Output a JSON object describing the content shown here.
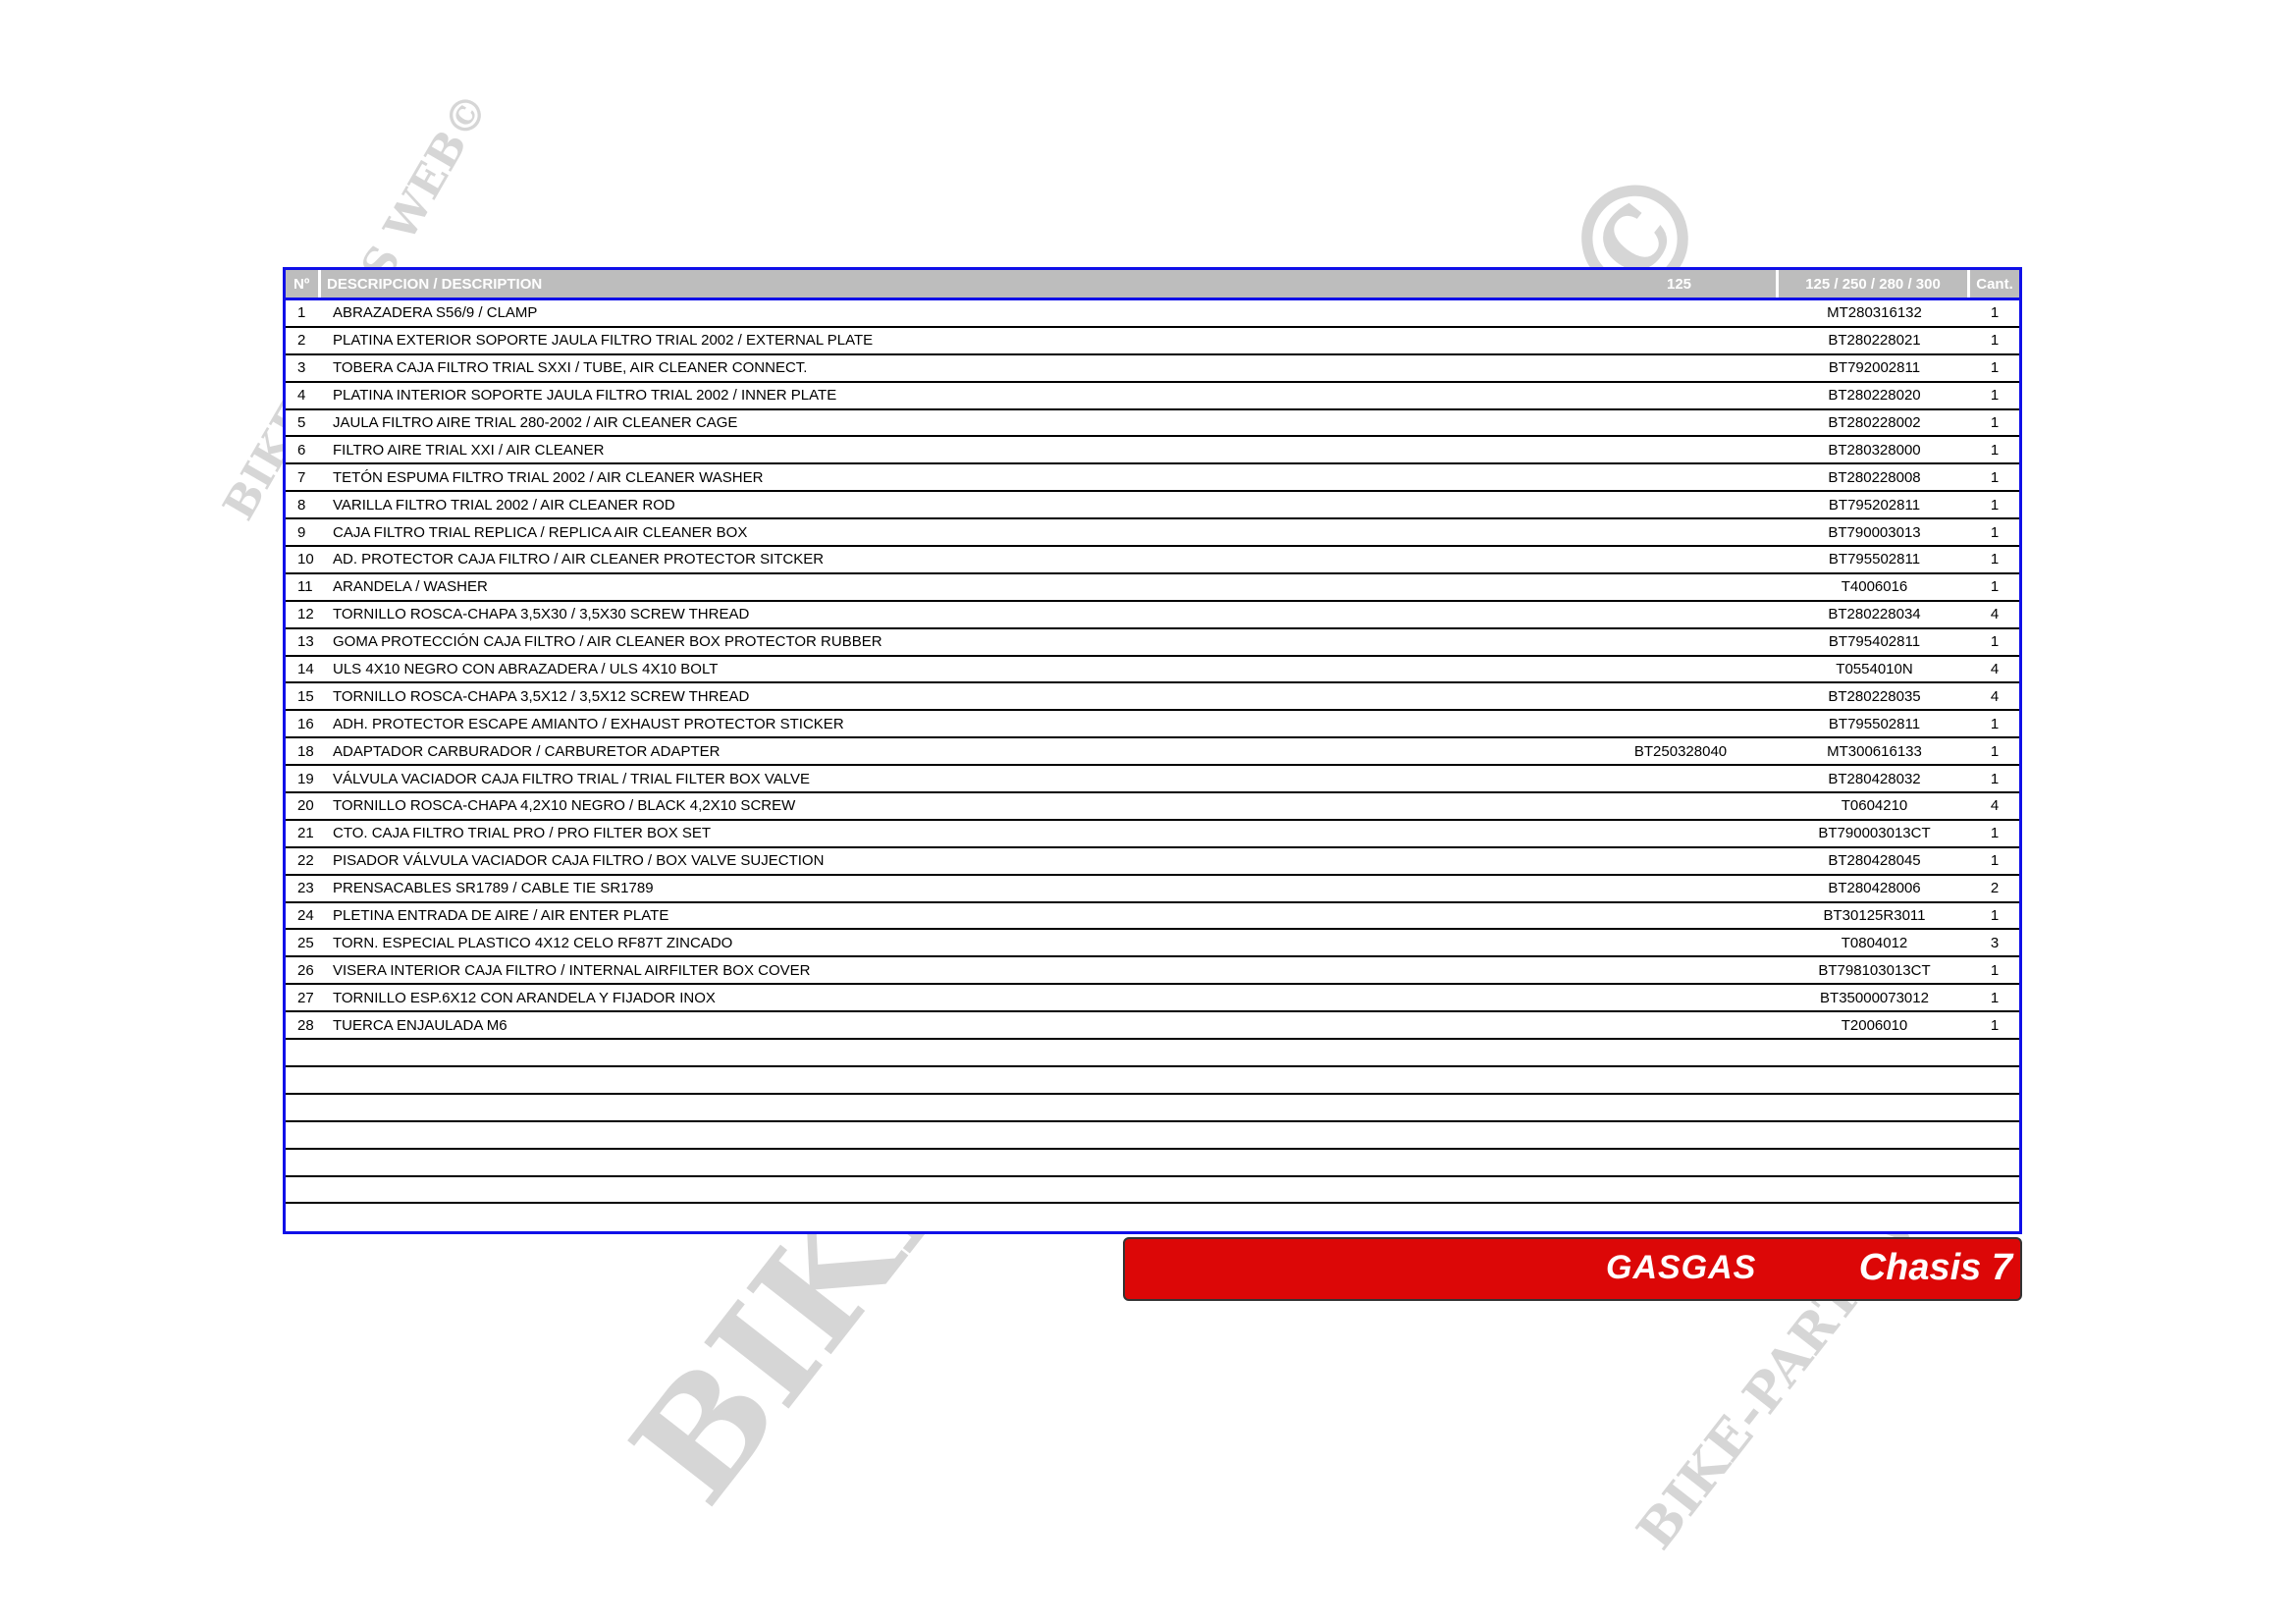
{
  "table": {
    "headers": {
      "no": "Nº",
      "description": "DESCRIPCION / DESCRIPTION",
      "col_125": "125",
      "col_all": "125 / 250 / 280 / 300",
      "qty": "Cant."
    },
    "rows": [
      {
        "no": "1",
        "desc": "ABRAZADERA S56/9 / CLAMP",
        "c125": "",
        "call": "MT280316132",
        "qty": "1"
      },
      {
        "no": "2",
        "desc": "PLATINA EXTERIOR SOPORTE JAULA FILTRO TRIAL 2002 / EXTERNAL PLATE",
        "c125": "",
        "call": "BT280228021",
        "qty": "1"
      },
      {
        "no": "3",
        "desc": "TOBERA CAJA FILTRO TRIAL SXXI / TUBE, AIR CLEANER CONNECT.",
        "c125": "",
        "call": "BT792002811",
        "qty": "1"
      },
      {
        "no": "4",
        "desc": "PLATINA INTERIOR SOPORTE JAULA FILTRO TRIAL 2002 / INNER PLATE",
        "c125": "",
        "call": "BT280228020",
        "qty": "1"
      },
      {
        "no": "5",
        "desc": "JAULA FILTRO AIRE TRIAL 280-2002 / AIR CLEANER CAGE",
        "c125": "",
        "call": "BT280228002",
        "qty": "1"
      },
      {
        "no": "6",
        "desc": "FILTRO AIRE TRIAL XXI / AIR CLEANER",
        "c125": "",
        "call": "BT280328000",
        "qty": "1"
      },
      {
        "no": "7",
        "desc": "TETÓN ESPUMA FILTRO TRIAL 2002 / AIR CLEANER WASHER",
        "c125": "",
        "call": "BT280228008",
        "qty": "1"
      },
      {
        "no": "8",
        "desc": "VARILLA FILTRO TRIAL 2002 / AIR CLEANER ROD",
        "c125": "",
        "call": "BT795202811",
        "qty": "1"
      },
      {
        "no": "9",
        "desc": "CAJA FILTRO TRIAL REPLICA / REPLICA AIR CLEANER BOX",
        "c125": "",
        "call": "BT790003013",
        "qty": "1"
      },
      {
        "no": "10",
        "desc": "AD. PROTECTOR CAJA FILTRO / AIR CLEANER PROTECTOR SITCKER",
        "c125": "",
        "call": "BT795502811",
        "qty": "1"
      },
      {
        "no": "11",
        "desc": "ARANDELA / WASHER",
        "c125": "",
        "call": "T4006016",
        "qty": "1"
      },
      {
        "no": "12",
        "desc": "TORNILLO ROSCA-CHAPA 3,5X30 / 3,5X30 SCREW THREAD",
        "c125": "",
        "call": "BT280228034",
        "qty": "4"
      },
      {
        "no": "13",
        "desc": "GOMA PROTECCIÓN CAJA FILTRO / AIR CLEANER BOX PROTECTOR RUBBER",
        "c125": "",
        "call": "BT795402811",
        "qty": "1"
      },
      {
        "no": "14",
        "desc": "ULS 4X10 NEGRO CON ABRAZADERA / ULS 4X10 BOLT",
        "c125": "",
        "call": "T0554010N",
        "qty": "4"
      },
      {
        "no": "15",
        "desc": "TORNILLO ROSCA-CHAPA 3,5X12 / 3,5X12 SCREW THREAD",
        "c125": "",
        "call": "BT280228035",
        "qty": "4"
      },
      {
        "no": "16",
        "desc": "ADH. PROTECTOR ESCAPE AMIANTO / EXHAUST PROTECTOR STICKER",
        "c125": "",
        "call": "BT795502811",
        "qty": "1"
      },
      {
        "no": "18",
        "desc": "ADAPTADOR CARBURADOR / CARBURETOR ADAPTER",
        "c125": "BT250328040",
        "call": "MT300616133",
        "qty": "1"
      },
      {
        "no": "19",
        "desc": "VÁLVULA VACIADOR CAJA FILTRO TRIAL / TRIAL FILTER BOX VALVE",
        "c125": "",
        "call": "BT280428032",
        "qty": "1"
      },
      {
        "no": "20",
        "desc": "TORNILLO ROSCA-CHAPA 4,2X10 NEGRO / BLACK 4,2X10 SCREW",
        "c125": "",
        "call": "T0604210",
        "qty": "4"
      },
      {
        "no": "21",
        "desc": "CTO. CAJA FILTRO TRIAL PRO / PRO FILTER BOX SET",
        "c125": "",
        "call": "BT790003013CT",
        "qty": "1"
      },
      {
        "no": "22",
        "desc": "PISADOR VÁLVULA VACIADOR CAJA FILTRO / BOX VALVE SUJECTION",
        "c125": "",
        "call": "BT280428045",
        "qty": "1"
      },
      {
        "no": "23",
        "desc": "PRENSACABLES SR1789 / CABLE TIE SR1789",
        "c125": "",
        "call": "BT280428006",
        "qty": "2"
      },
      {
        "no": "24",
        "desc": "PLETINA ENTRADA DE AIRE / AIR ENTER PLATE",
        "c125": "",
        "call": "BT30125R3011",
        "qty": "1"
      },
      {
        "no": "25",
        "desc": "TORN. ESPECIAL PLASTICO 4X12 CELO RF87T ZINCADO",
        "c125": "",
        "call": "T0804012",
        "qty": "3"
      },
      {
        "no": "26",
        "desc": "VISERA INTERIOR CAJA FILTRO / INTERNAL AIRFILTER BOX COVER",
        "c125": "",
        "call": "BT798103013CT",
        "qty": "1"
      },
      {
        "no": "27",
        "desc": "TORNILLO ESP.6X12 CON ARANDELA Y FIJADOR INOX",
        "c125": "",
        "call": "BT35000073012",
        "qty": "1"
      },
      {
        "no": "28",
        "desc": "TUERCA ENJAULADA M6",
        "c125": "",
        "call": "T2006010",
        "qty": "1"
      },
      {
        "no": "",
        "desc": "",
        "c125": "",
        "call": "",
        "qty": ""
      },
      {
        "no": "",
        "desc": "",
        "c125": "",
        "call": "",
        "qty": ""
      },
      {
        "no": "",
        "desc": "",
        "c125": "",
        "call": "",
        "qty": ""
      },
      {
        "no": "",
        "desc": "",
        "c125": "",
        "call": "",
        "qty": ""
      },
      {
        "no": "",
        "desc": "",
        "c125": "",
        "call": "",
        "qty": ""
      },
      {
        "no": "",
        "desc": "",
        "c125": "",
        "call": "",
        "qty": ""
      },
      {
        "no": "",
        "desc": "",
        "c125": "",
        "call": "",
        "qty": ""
      }
    ]
  },
  "footer": {
    "brand": "GASGAS",
    "section": "Chasis 7",
    "color": "#dc0707"
  },
  "watermark": "BIKE-PARTS WEB©"
}
